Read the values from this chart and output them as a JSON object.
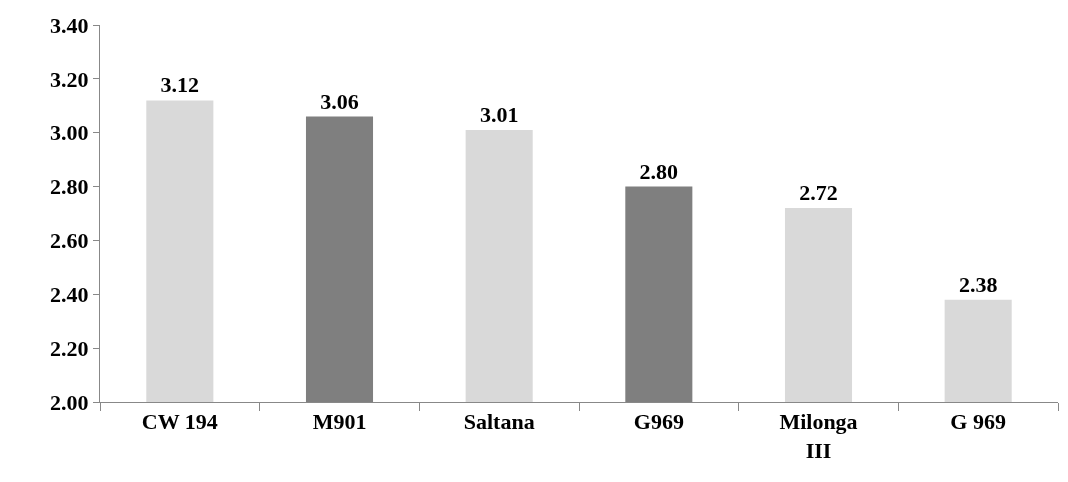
{
  "chart_data": {
    "type": "bar",
    "categories": [
      "CW 194",
      "M901",
      "Saltana",
      "G969",
      "Milonga III",
      "G 969"
    ],
    "values": [
      3.12,
      3.06,
      3.01,
      2.8,
      2.72,
      2.38
    ],
    "colors": [
      "#d9d9d9",
      "#7f7f7f",
      "#d9d9d9",
      "#7f7f7f",
      "#d9d9d9",
      "#d9d9d9"
    ],
    "ylim": [
      2,
      3.4
    ],
    "yticks": [
      {
        "value": 2,
        "label": "2.00"
      },
      {
        "value": 2.2,
        "label": "2.20"
      },
      {
        "value": 2.4,
        "label": "2.40"
      },
      {
        "value": 2.6,
        "label": "2.60"
      },
      {
        "value": 2.8,
        "label": "2.80"
      },
      {
        "value": 3,
        "label": "3.00"
      },
      {
        "value": 3.2,
        "label": "3.20"
      },
      {
        "value": 3.4,
        "label": "3.40"
      }
    ],
    "value_labels": [
      "3.12",
      "3.06",
      "3.01",
      "2.80",
      "2.72",
      "2.38"
    ],
    "grid": false
  }
}
